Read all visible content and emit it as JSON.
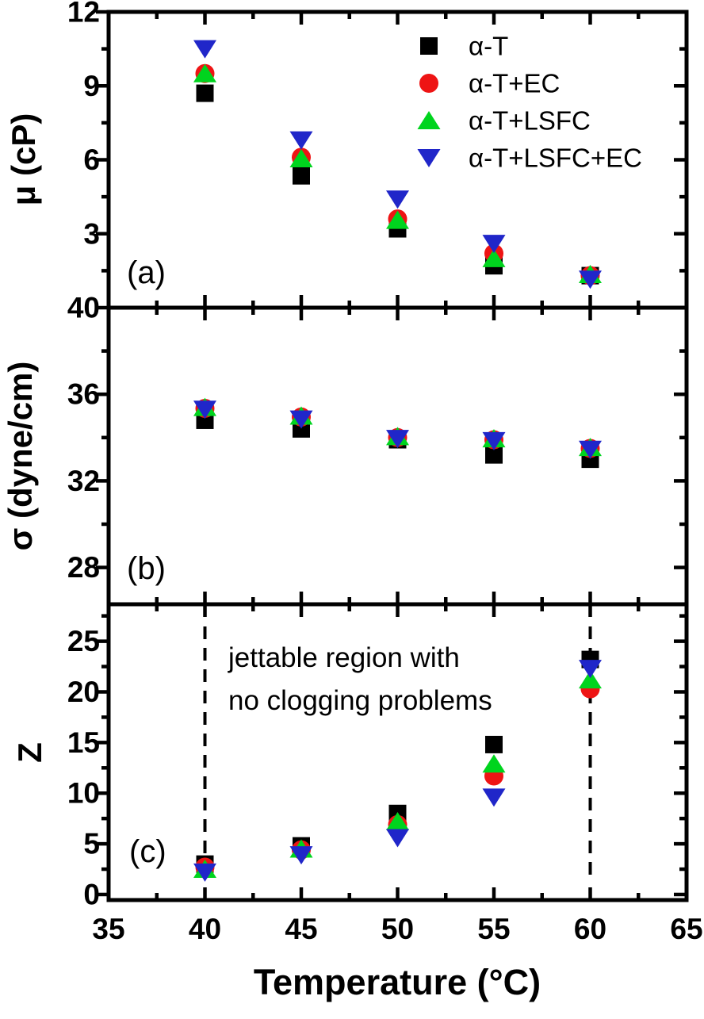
{
  "figure": {
    "xlabel": "Temperature (°C)",
    "xlim": [
      35,
      65
    ],
    "x_major_ticks": [
      35,
      40,
      45,
      50,
      55,
      60,
      65
    ],
    "x_minor_step": 2.5
  },
  "colors": {
    "alpha_t": "#000000",
    "alpha_t_ec": "#ee1414",
    "alpha_t_lsfc": "#00d41e",
    "alpha_t_lsfc_ec": "#2026c9",
    "axis": "#000000"
  },
  "legend": {
    "items": [
      {
        "label": "α-T",
        "marker": "square",
        "color_key": "alpha_t"
      },
      {
        "label": "α-T+EC",
        "marker": "circle",
        "color_key": "alpha_t_ec"
      },
      {
        "label": "α-T+LSFC",
        "marker": "triangle-up",
        "color_key": "alpha_t_lsfc"
      },
      {
        "label": "α-T+LSFC+EC",
        "marker": "triangle-down",
        "color_key": "alpha_t_lsfc_ec"
      }
    ]
  },
  "chart_data": [
    {
      "panel": "a",
      "type": "scatter",
      "panel_label": "(a)",
      "ylabel": "μ (cP)",
      "ylim": [
        0,
        12
      ],
      "y_major_ticks": [
        3,
        6,
        9,
        12
      ],
      "y_minor_ticks": [
        1.5,
        4.5,
        7.5,
        10.5
      ],
      "x": [
        40,
        45,
        50,
        55,
        60
      ],
      "series": [
        {
          "name": "α-T",
          "marker": "square",
          "color_key": "alpha_t",
          "values": [
            8.7,
            5.35,
            3.2,
            1.7,
            1.3
          ]
        },
        {
          "name": "α-T+EC",
          "marker": "circle",
          "color_key": "alpha_t_ec",
          "values": [
            9.5,
            6.1,
            3.6,
            2.2,
            1.3
          ]
        },
        {
          "name": "α-T+LSFC",
          "marker": "triangle-up",
          "color_key": "alpha_t_lsfc",
          "values": [
            9.5,
            6.05,
            3.55,
            2.0,
            1.35
          ]
        },
        {
          "name": "α-T+LSFC+EC",
          "marker": "triangle-down",
          "color_key": "alpha_t_lsfc_ec",
          "values": [
            10.5,
            6.8,
            4.4,
            2.6,
            1.15
          ]
        }
      ]
    },
    {
      "panel": "b",
      "type": "scatter",
      "panel_label": "(b)",
      "ylabel": "σ (dyne/cm)",
      "ylim": [
        26.3,
        40
      ],
      "y_major_ticks": [
        28,
        32,
        36,
        40
      ],
      "y_minor_ticks": [
        30,
        34,
        38
      ],
      "x": [
        40,
        45,
        50,
        55,
        60
      ],
      "series": [
        {
          "name": "α-T",
          "marker": "square",
          "color_key": "alpha_t",
          "values": [
            34.8,
            34.4,
            33.9,
            33.2,
            33.0
          ]
        },
        {
          "name": "α-T+EC",
          "marker": "circle",
          "color_key": "alpha_t_ec",
          "values": [
            35.35,
            34.95,
            34.0,
            33.9,
            33.5
          ]
        },
        {
          "name": "α-T+LSFC",
          "marker": "triangle-up",
          "color_key": "alpha_t_lsfc",
          "values": [
            35.4,
            35.0,
            34.05,
            33.95,
            33.55
          ]
        },
        {
          "name": "α-T+LSFC+EC",
          "marker": "triangle-down",
          "color_key": "alpha_t_lsfc_ec",
          "values": [
            35.3,
            34.85,
            33.95,
            33.85,
            33.45
          ]
        }
      ]
    },
    {
      "panel": "c",
      "type": "scatter",
      "panel_label": "(c)",
      "ylabel": "Z",
      "ylim": [
        -0.55,
        28.65
      ],
      "y_major_ticks": [
        0,
        5,
        10,
        15,
        20,
        25
      ],
      "y_minor_ticks": [
        2.5,
        7.5,
        12.5,
        17.5,
        22.5,
        27.5
      ],
      "x": [
        40,
        45,
        50,
        55,
        60
      ],
      "dashed_lines_x": [
        40,
        60
      ],
      "annotation": {
        "lines": [
          "jettable region with",
          "no clogging problems"
        ]
      },
      "series": [
        {
          "name": "α-T",
          "marker": "square",
          "color_key": "alpha_t",
          "values": [
            3.0,
            4.8,
            8.0,
            14.8,
            23.2
          ]
        },
        {
          "name": "α-T+EC",
          "marker": "circle",
          "color_key": "alpha_t_ec",
          "values": [
            2.7,
            4.4,
            6.9,
            11.7,
            20.3
          ]
        },
        {
          "name": "α-T+LSFC",
          "marker": "triangle-up",
          "color_key": "alpha_t_lsfc",
          "values": [
            2.5,
            4.5,
            7.2,
            12.9,
            21.2
          ]
        },
        {
          "name": "α-T+LSFC+EC",
          "marker": "triangle-down",
          "color_key": "alpha_t_lsfc_ec",
          "values": [
            2.2,
            3.9,
            5.6,
            9.6,
            22.3
          ]
        }
      ]
    }
  ]
}
